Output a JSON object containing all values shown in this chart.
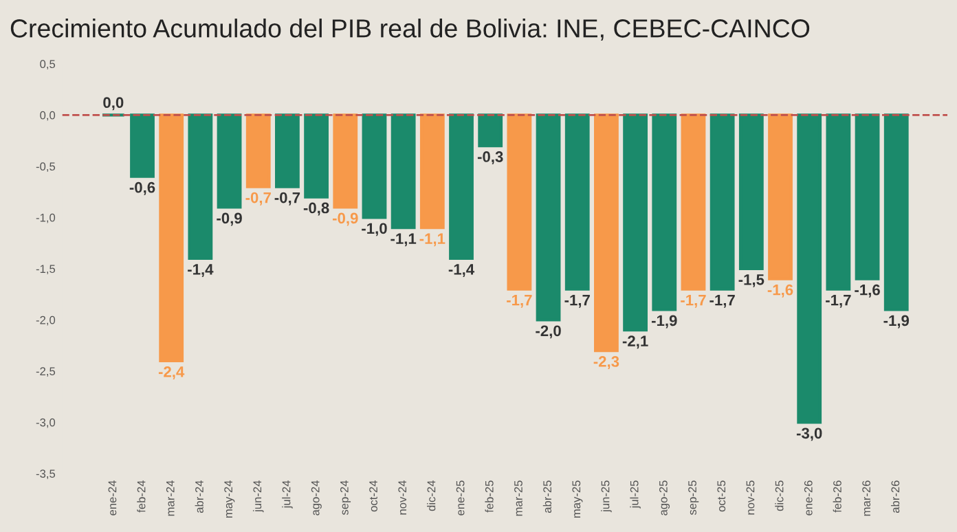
{
  "chart_data": {
    "type": "bar",
    "title": "Crecimiento Acumulado del PIB real de Bolivia: INE, CEBEC-CAINCO",
    "categories": [
      "ene-24",
      "feb-24",
      "mar-24",
      "abr-24",
      "may-24",
      "jun-24",
      "jul-24",
      "ago-24",
      "sep-24",
      "oct-24",
      "nov-24",
      "dic-24",
      "ene-25",
      "feb-25",
      "mar-25",
      "abr-25",
      "may-25",
      "jun-25",
      "jul-25",
      "ago-25",
      "sep-25",
      "oct-25",
      "nov-25",
      "dic-25",
      "ene-26",
      "feb-26",
      "mar-26",
      "abr-26"
    ],
    "values": [
      0.0,
      -0.6,
      -2.4,
      -1.4,
      -0.9,
      -0.7,
      -0.7,
      -0.8,
      -0.9,
      -1.0,
      -1.1,
      -1.1,
      -1.4,
      -0.3,
      -1.7,
      -2.0,
      -1.7,
      -2.3,
      -2.1,
      -1.9,
      -1.7,
      -1.7,
      -1.5,
      -1.6,
      -3.0,
      -1.7,
      -1.6,
      -1.9
    ],
    "colors": [
      "#1b8a6b",
      "#1b8a6b",
      "#f7994a",
      "#1b8a6b",
      "#1b8a6b",
      "#f7994a",
      "#1b8a6b",
      "#1b8a6b",
      "#f7994a",
      "#1b8a6b",
      "#1b8a6b",
      "#f7994a",
      "#1b8a6b",
      "#1b8a6b",
      "#f7994a",
      "#1b8a6b",
      "#1b8a6b",
      "#f7994a",
      "#1b8a6b",
      "#1b8a6b",
      "#f7994a",
      "#1b8a6b",
      "#1b8a6b",
      "#f7994a",
      "#1b8a6b",
      "#1b8a6b",
      "#1b8a6b",
      "#1b8a6b"
    ],
    "value_labels": [
      "0,0",
      "-0,6",
      "-2,4",
      "-1,4",
      "-0,9",
      "-0,7",
      "-0,7",
      "-0,8",
      "-0,9",
      "-1,0",
      "-1,1",
      "-1,1",
      "-1,4",
      "-0,3",
      "-1,7",
      "-2,0",
      "-1,7",
      "-2,3",
      "-2,1",
      "-1,9",
      "-1,7",
      "-1,7",
      "-1,5",
      "-1,6",
      "-3,0",
      "-1,7",
      "-1,6",
      "-1,9"
    ],
    "ylim": [
      -3.5,
      0.5
    ],
    "yticks": [
      {
        "value": 0.5,
        "label": "0,5"
      },
      {
        "value": 0.0,
        "label": "0,0"
      },
      {
        "value": -0.5,
        "label": "-0,5"
      },
      {
        "value": -1.0,
        "label": "-1,0"
      },
      {
        "value": -1.5,
        "label": "-1,5"
      },
      {
        "value": -2.0,
        "label": "-2,0"
      },
      {
        "value": -2.5,
        "label": "-2,5"
      },
      {
        "value": -3.0,
        "label": "-3,0"
      },
      {
        "value": -3.5,
        "label": "-3,5"
      }
    ],
    "ref_lines": [
      {
        "axis": "y",
        "value": 0.0,
        "color": "#c0504d",
        "line_style": "dashed"
      }
    ],
    "grid": false,
    "legend": false
  }
}
